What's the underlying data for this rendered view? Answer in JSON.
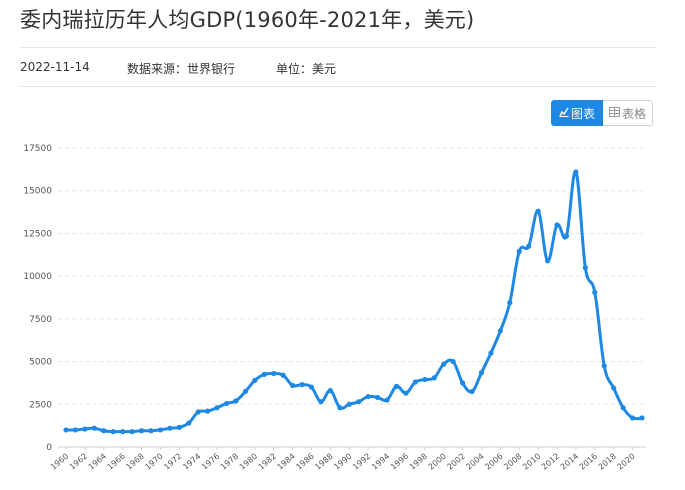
{
  "page": {
    "title": "委内瑞拉历年人均GDP(1960年-2021年，美元)",
    "date": "2022-11-14",
    "source": "数据来源：世界银行",
    "unit": "单位：美元"
  },
  "toggle": {
    "chart_label": "图表",
    "table_label": "表格",
    "chart_icon": "chart-line-icon",
    "table_icon": "table-grid-icon",
    "accent_color": "#1e88e5"
  },
  "chart_data": {
    "type": "line",
    "title": "",
    "xlabel": "",
    "ylabel": "",
    "ylim": [
      0,
      17500
    ],
    "yticks": [
      0,
      2500,
      5000,
      7500,
      10000,
      12500,
      15000,
      17500
    ],
    "xtick_labels": [
      "1960",
      "1962",
      "1964",
      "1966",
      "1968",
      "1970",
      "1972",
      "1974",
      "1976",
      "1978",
      "1980",
      "1982",
      "1984",
      "1986",
      "1988",
      "1990",
      "1992",
      "1994",
      "1996",
      "1998",
      "2000",
      "2002",
      "2004",
      "2006",
      "2008",
      "2010",
      "2012",
      "2014",
      "2016",
      "2018",
      "2020"
    ],
    "grid": "horizontal dashed",
    "line_color": "#1e88e5",
    "series": [
      {
        "x": [
          1960,
          1961,
          1962,
          1963,
          1964,
          1965,
          1966,
          1967,
          1968,
          1969,
          1970,
          1971,
          1972,
          1973,
          1974,
          1975,
          1976,
          1977,
          1978,
          1979,
          1980,
          1981,
          1982,
          1983,
          1984,
          1985,
          1986,
          1987,
          1988,
          1989,
          1990,
          1991,
          1992,
          1993,
          1994,
          1995,
          1996,
          1997,
          1998,
          1999,
          2000,
          2001,
          2002,
          2003,
          2004,
          2005,
          2006,
          2007,
          2008,
          2009,
          2010,
          2011,
          2012,
          2013,
          2014,
          2015,
          2016,
          2017,
          2018,
          2019,
          2020,
          2021
        ],
        "values": [
          1000,
          1000,
          1050,
          1100,
          950,
          900,
          900,
          900,
          950,
          950,
          1000,
          1100,
          1150,
          1400,
          2050,
          2100,
          2300,
          2550,
          2700,
          3250,
          3900,
          4250,
          4300,
          4200,
          3600,
          3650,
          3500,
          2650,
          3300,
          2300,
          2500,
          2650,
          2950,
          2900,
          2750,
          3550,
          3150,
          3800,
          3950,
          4050,
          4850,
          5000,
          3750,
          3250,
          4350,
          5500,
          6800,
          8450,
          11450,
          11750,
          13800,
          10900,
          13000,
          12350,
          16100,
          10500,
          9050,
          4750,
          3450,
          2300,
          1700,
          1700
        ]
      }
    ]
  }
}
